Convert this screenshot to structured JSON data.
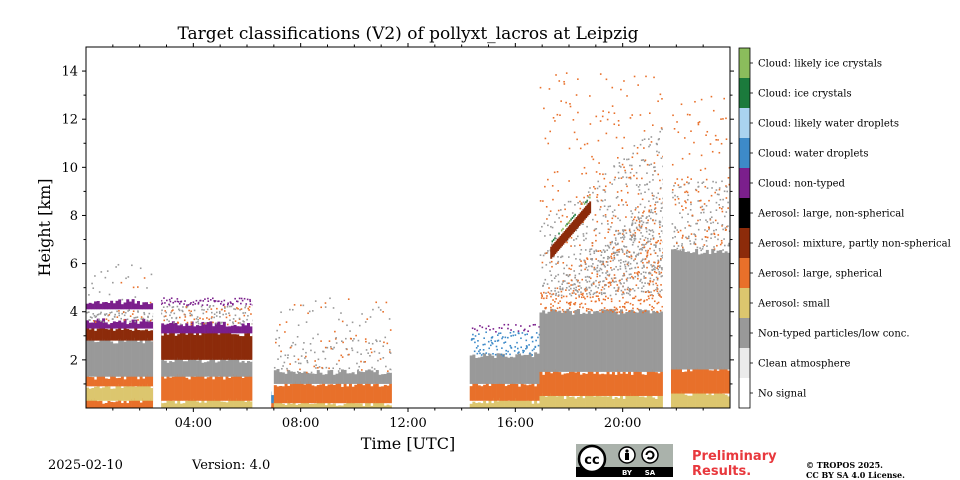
{
  "chart_data": {
    "type": "heatmap",
    "title": "Target classifications (V2) of pollyxt_lacros at Leipzig",
    "xlabel": "Time [UTC]",
    "ylabel": "Height [km]",
    "xlim": [
      0,
      24
    ],
    "ylim": [
      0,
      15
    ],
    "x_ticks": [
      4,
      8,
      12,
      16,
      20
    ],
    "x_tick_labels": [
      "04:00",
      "08:00",
      "12:00",
      "16:00",
      "20:00"
    ],
    "y_ticks": [
      2,
      4,
      6,
      8,
      10,
      12,
      14
    ],
    "y_tick_labels": [
      "2",
      "4",
      "6",
      "8",
      "10",
      "12",
      "14"
    ],
    "classes": [
      {
        "label": "No signal",
        "color": "#ffffff"
      },
      {
        "label": "Clean atmosphere",
        "color": "#ebebeb"
      },
      {
        "label": "Non-typed particles/low conc.",
        "color": "#999999"
      },
      {
        "label": "Aerosol: small",
        "color": "#dcc66e"
      },
      {
        "label": "Aerosol: large, spherical",
        "color": "#e8702a"
      },
      {
        "label": "Aerosol: mixture, partly non-spherical",
        "color": "#8c2b0a"
      },
      {
        "label": "Aerosol: large, non-spherical",
        "color": "#000000"
      },
      {
        "label": "Cloud: non-typed",
        "color": "#7b1f8c"
      },
      {
        "label": "Cloud: water droplets",
        "color": "#3d8ac8"
      },
      {
        "label": "Cloud: likely water droplets",
        "color": "#aad3f0"
      },
      {
        "label": "Cloud: ice crystals",
        "color": "#1b7a3c"
      },
      {
        "label": "Cloud: likely ice crystals",
        "color": "#8bbd5c"
      }
    ],
    "data_gaps": [
      [
        2.5,
        2.8
      ],
      [
        6.2,
        6.9
      ],
      [
        11.4,
        14.2
      ],
      [
        21.5,
        21.8
      ]
    ],
    "grid": false,
    "legend": "right colorbar"
  },
  "footer": {
    "date": "2025-02-10",
    "version": "Version: 4.0",
    "preliminary": [
      "Preliminary",
      "Results."
    ],
    "copyright": [
      "© TROPOS 2025.",
      "CC BY SA 4.0 License."
    ],
    "license_badge": [
      "cc",
      "BY",
      "SA"
    ]
  }
}
